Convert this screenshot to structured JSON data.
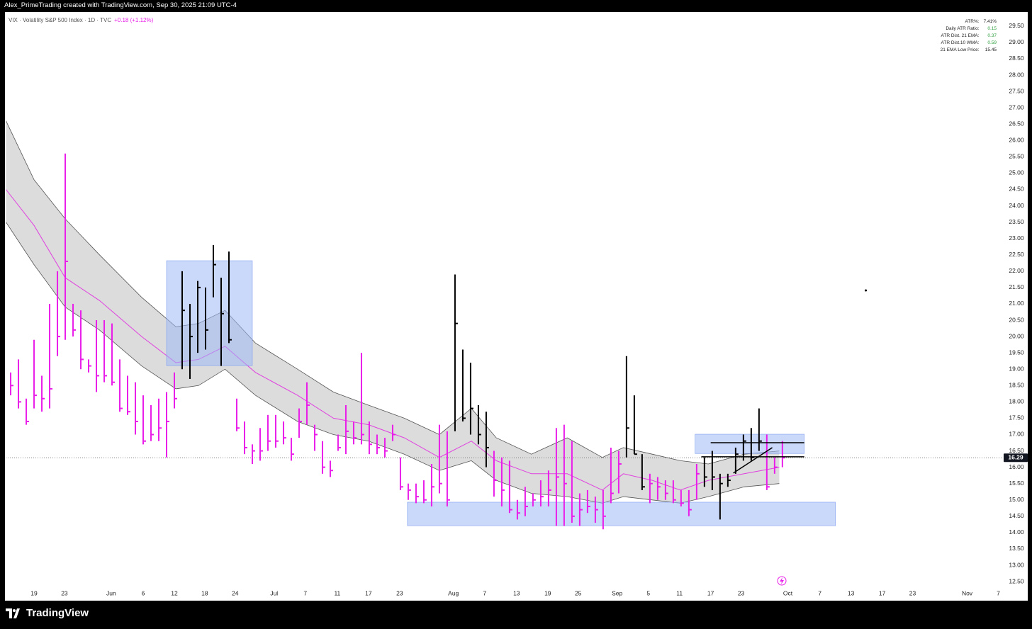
{
  "header": {
    "attribution": "Alex_PrimeTrading created with TradingView.com, Sep 30, 2025 21:09 UTC-4",
    "symbol": "VIX · Volatility S&P 500 Index · 1D · TVC",
    "change": "+0.18 (+1.12%)"
  },
  "stats": [
    {
      "label": "ATR%:",
      "value": "7.41%",
      "color": "#222222"
    },
    {
      "label": "Daily ATR Ratio:",
      "value": "0.15",
      "color": "#2e9e3e"
    },
    {
      "label": "ATR Dist. 21 EMA:",
      "value": "0.37",
      "color": "#2e9e3e"
    },
    {
      "label": "ATR Dist.10 WMA:",
      "value": "0.59",
      "color": "#2e9e3e"
    },
    {
      "label": "21 EMA Low Price:",
      "value": "15.45",
      "color": "#222222"
    }
  ],
  "footer": {
    "brand": "TradingView"
  },
  "chart_data": {
    "type": "ohlc",
    "xlim": [
      -3.64,
      124.2
    ],
    "ylim": [
      12.35,
      29.93
    ],
    "grid": false,
    "xticks": [
      {
        "value": 0,
        "label": "19"
      },
      {
        "value": 3.9,
        "label": "23"
      },
      {
        "value": 9.9,
        "label": "Jun"
      },
      {
        "value": 14,
        "label": "6"
      },
      {
        "value": 18,
        "label": "12"
      },
      {
        "value": 21.9,
        "label": "18"
      },
      {
        "value": 25.8,
        "label": "24"
      },
      {
        "value": 30.8,
        "label": "Jul"
      },
      {
        "value": 34.8,
        "label": "7"
      },
      {
        "value": 38.9,
        "label": "11"
      },
      {
        "value": 42.9,
        "label": "17"
      },
      {
        "value": 46.9,
        "label": "23"
      },
      {
        "value": 53.8,
        "label": "Aug"
      },
      {
        "value": 57.8,
        "label": "7"
      },
      {
        "value": 61.9,
        "label": "13"
      },
      {
        "value": 65.9,
        "label": "19"
      },
      {
        "value": 69.8,
        "label": "25"
      },
      {
        "value": 74.8,
        "label": "Sep"
      },
      {
        "value": 78.8,
        "label": "5"
      },
      {
        "value": 82.8,
        "label": "11"
      },
      {
        "value": 86.8,
        "label": "17"
      },
      {
        "value": 90.7,
        "label": "23"
      },
      {
        "value": 96.7,
        "label": "Oct"
      },
      {
        "value": 100.8,
        "label": "7"
      },
      {
        "value": 104.8,
        "label": "13"
      },
      {
        "value": 108.8,
        "label": "17"
      },
      {
        "value": 112.7,
        "label": "23"
      },
      {
        "value": 119.7,
        "label": "Nov"
      },
      {
        "value": 123.7,
        "label": "7"
      }
    ],
    "yticks": [
      {
        "value": 12.5,
        "label": "12.50"
      },
      {
        "value": 13,
        "label": "13.00"
      },
      {
        "value": 13.5,
        "label": "13.50"
      },
      {
        "value": 14,
        "label": "14.00"
      },
      {
        "value": 14.5,
        "label": "14.50"
      },
      {
        "value": 15,
        "label": "15.00"
      },
      {
        "value": 15.5,
        "label": "15.50"
      },
      {
        "value": 16,
        "label": "16.00"
      },
      {
        "value": 16.5,
        "label": "16.50"
      },
      {
        "value": 17,
        "label": "17.00"
      },
      {
        "value": 17.5,
        "label": "17.50"
      },
      {
        "value": 18,
        "label": "18.00"
      },
      {
        "value": 18.5,
        "label": "18.50"
      },
      {
        "value": 19,
        "label": "19.00"
      },
      {
        "value": 19.5,
        "label": "19.50"
      },
      {
        "value": 20,
        "label": "20.00"
      },
      {
        "value": 20.5,
        "label": "20.50"
      },
      {
        "value": 21,
        "label": "21.00"
      },
      {
        "value": 21.5,
        "label": "21.50"
      },
      {
        "value": 22,
        "label": "22.00"
      },
      {
        "value": 22.5,
        "label": "22.50"
      },
      {
        "value": 23,
        "label": "23.00"
      },
      {
        "value": 23.5,
        "label": "23.50"
      },
      {
        "value": 24,
        "label": "24.00"
      },
      {
        "value": 24.5,
        "label": "24.50"
      },
      {
        "value": 25,
        "label": "25.00"
      },
      {
        "value": 25.5,
        "label": "25.50"
      },
      {
        "value": 26,
        "label": "26.00"
      },
      {
        "value": 26.5,
        "label": "26.50"
      },
      {
        "value": 27,
        "label": "27.00"
      },
      {
        "value": 27.5,
        "label": "27.50"
      },
      {
        "value": 28,
        "label": "28.00"
      },
      {
        "value": 28.5,
        "label": "28.50"
      },
      {
        "value": 29,
        "label": "29.00"
      },
      {
        "value": 29.5,
        "label": "29.50"
      }
    ],
    "band": {
      "fill": "#d6d6d6",
      "line_color": "#555555",
      "mid_color": "#e040e0",
      "x": [
        -3.6,
        0,
        4,
        8.4,
        13.8,
        18.2,
        21.1,
        24.5,
        28.4,
        33.8,
        38.4,
        42.9,
        47.5,
        52,
        56.1,
        59.3,
        63.8,
        68.4,
        72.9,
        75.6,
        79.3,
        82.9,
        86.5,
        91.1,
        95.6
      ],
      "upper": [
        26.6,
        24.8,
        23.6,
        22.5,
        21.2,
        20.3,
        20.4,
        20.8,
        19.8,
        19.0,
        18.3,
        17.9,
        17.5,
        17.0,
        17.8,
        16.9,
        16.4,
        16.9,
        16.3,
        16.6,
        16.4,
        16.2,
        16.1,
        16.4,
        16.5
      ],
      "lower": [
        23.5,
        22.2,
        20.9,
        20.2,
        19.1,
        18.4,
        18.5,
        19.0,
        18.2,
        17.4,
        17.0,
        16.8,
        16.4,
        15.9,
        16.2,
        15.6,
        15.2,
        15.1,
        14.9,
        15.1,
        15.0,
        14.9,
        15.1,
        15.4,
        15.5
      ],
      "mid": [
        24.5,
        23.4,
        21.8,
        21.1,
        20.0,
        19.2,
        19.3,
        19.7,
        18.9,
        18.2,
        17.5,
        17.3,
        16.9,
        16.3,
        16.8,
        16.2,
        15.8,
        15.8,
        15.3,
        15.8,
        15.6,
        15.3,
        15.6,
        15.8,
        16.0
      ]
    },
    "zones": [
      {
        "color": "#9fb8f5",
        "x": [
          17.0,
          28.0
        ],
        "y": [
          19.11,
          22.32
        ]
      },
      {
        "color": "#9fb8f5",
        "x": [
          47.9,
          102.8
        ],
        "y": [
          14.21,
          14.93
        ]
      },
      {
        "color": "#9fb8f5",
        "x": [
          84.8,
          98.8
        ],
        "y": [
          16.42,
          17.01
        ]
      }
    ],
    "lines": [
      {
        "x": [
          86.8,
          98.8
        ],
        "y": [
          16.75,
          16.75
        ]
      },
      {
        "x": [
          85.6,
          98.8
        ],
        "y": [
          16.32,
          16.32
        ]
      },
      {
        "x": [
          89.7,
          94.7
        ],
        "y": [
          15.82,
          16.6
        ]
      }
    ],
    "marker": {
      "x": 106.7,
      "y": 21.41
    },
    "last_price": 16.29,
    "series": [
      {
        "color": "#e91ee9",
        "x": [
          -3,
          -2,
          -1,
          0,
          1,
          2,
          3,
          4,
          5,
          6,
          7,
          8,
          9,
          10,
          11,
          12,
          13,
          14,
          15,
          16,
          17,
          18,
          26,
          27,
          28,
          29,
          30,
          31,
          32,
          33,
          34,
          35,
          36,
          37,
          38,
          39,
          40,
          41,
          42,
          43,
          44,
          45,
          46,
          47,
          48,
          49,
          50,
          51,
          52,
          53,
          59,
          60,
          61,
          62,
          63,
          64,
          65,
          66,
          67,
          68,
          69,
          70,
          71,
          72,
          73,
          74,
          75,
          79,
          80,
          81,
          82,
          83,
          84,
          85,
          94,
          95,
          96
        ],
        "high": [
          18.9,
          19.3,
          18.1,
          19.9,
          18.8,
          21.0,
          22.0,
          25.6,
          21.0,
          20.8,
          19.3,
          20.5,
          20.5,
          20.4,
          19.3,
          18.8,
          18.6,
          18.2,
          17.9,
          18.1,
          18.3,
          18.9,
          18.1,
          17.4,
          16.7,
          17.2,
          17.6,
          17.6,
          17.4,
          16.9,
          17.8,
          18.6,
          17.3,
          16.8,
          16.2,
          17.0,
          17.9,
          17.4,
          19.5,
          17.4,
          17.0,
          16.9,
          17.3,
          16.3,
          15.5,
          15.5,
          15.6,
          16.1,
          17.3,
          17.1,
          16.5,
          16.3,
          16.2,
          15.0,
          15.4,
          15.2,
          15.6,
          15.9,
          17.2,
          17.3,
          16.8,
          15.2,
          15.3,
          15.1,
          15.3,
          16.6,
          16.5,
          15.8,
          15.7,
          15.6,
          15.6,
          15.3,
          15.3,
          16.1,
          17.0,
          16.3,
          16.8
        ],
        "low": [
          18.2,
          17.8,
          17.3,
          17.8,
          17.7,
          17.8,
          19.4,
          19.9,
          20.0,
          19.0,
          18.9,
          18.3,
          18.6,
          18.5,
          17.7,
          17.6,
          17.0,
          16.7,
          16.8,
          16.8,
          16.3,
          17.8,
          17.1,
          16.4,
          16.1,
          16.2,
          16.5,
          16.6,
          16.7,
          16.2,
          16.9,
          17.3,
          16.5,
          15.8,
          15.7,
          16.5,
          16.4,
          16.7,
          16.7,
          16.4,
          16.4,
          16.3,
          16.8,
          15.3,
          15.0,
          14.9,
          14.9,
          14.8,
          15.2,
          14.8,
          15.1,
          14.8,
          14.6,
          14.4,
          14.5,
          14.8,
          14.8,
          14.8,
          14.2,
          14.2,
          14.3,
          14.2,
          14.6,
          14.3,
          14.1,
          14.9,
          15.2,
          14.9,
          15.0,
          15.0,
          14.9,
          14.8,
          14.5,
          15.0,
          15.3,
          15.8,
          16.0
        ],
        "close": [
          18.5,
          18.0,
          17.4,
          18.2,
          18.1,
          18.4,
          20.0,
          22.3,
          20.2,
          19.3,
          19.1,
          18.8,
          18.8,
          18.6,
          17.8,
          17.7,
          17.4,
          16.8,
          17.0,
          17.2,
          17.4,
          18.1,
          17.2,
          16.6,
          16.5,
          16.5,
          16.8,
          16.8,
          16.9,
          16.4,
          17.4,
          17.9,
          17.0,
          16.0,
          15.9,
          16.6,
          17.1,
          16.9,
          17.0,
          16.7,
          16.6,
          16.5,
          17.0,
          15.4,
          15.3,
          15.1,
          15.0,
          15.4,
          15.5,
          15.0,
          15.6,
          15.3,
          14.7,
          14.6,
          14.8,
          15.0,
          15.1,
          15.3,
          15.7,
          15.5,
          14.5,
          14.7,
          14.8,
          14.7,
          14.5,
          15.2,
          16.1,
          15.5,
          15.4,
          15.2,
          15.0,
          14.9,
          14.7,
          15.8,
          15.4,
          16.0,
          16.29
        ]
      },
      {
        "color": "#000000",
        "x": [
          19,
          20,
          21,
          22,
          23,
          24,
          25,
          54,
          55,
          56,
          57,
          58,
          76,
          77,
          78,
          86,
          87,
          88,
          89,
          90,
          91,
          92,
          93
        ],
        "high": [
          22.0,
          21.0,
          21.7,
          21.5,
          22.8,
          21.8,
          22.6,
          21.9,
          19.6,
          19.2,
          17.9,
          17.7,
          19.4,
          18.2,
          16.4,
          16.3,
          16.5,
          15.8,
          15.8,
          16.6,
          17.0,
          17.2,
          17.8
        ],
        "low": [
          19.0,
          18.7,
          19.5,
          19.6,
          21.2,
          19.1,
          19.8,
          17.1,
          17.4,
          17.0,
          16.7,
          16.0,
          16.3,
          16.4,
          15.3,
          15.4,
          15.3,
          14.4,
          15.4,
          15.8,
          16.2,
          16.2,
          16.5
        ],
        "close": [
          20.8,
          20.0,
          21.5,
          20.2,
          22.2,
          20.7,
          19.9,
          20.4,
          17.5,
          17.8,
          17.0,
          16.6,
          17.2,
          16.4,
          15.4,
          15.7,
          15.7,
          15.5,
          15.6,
          16.4,
          16.8,
          16.3,
          16.8
        ]
      }
    ]
  }
}
